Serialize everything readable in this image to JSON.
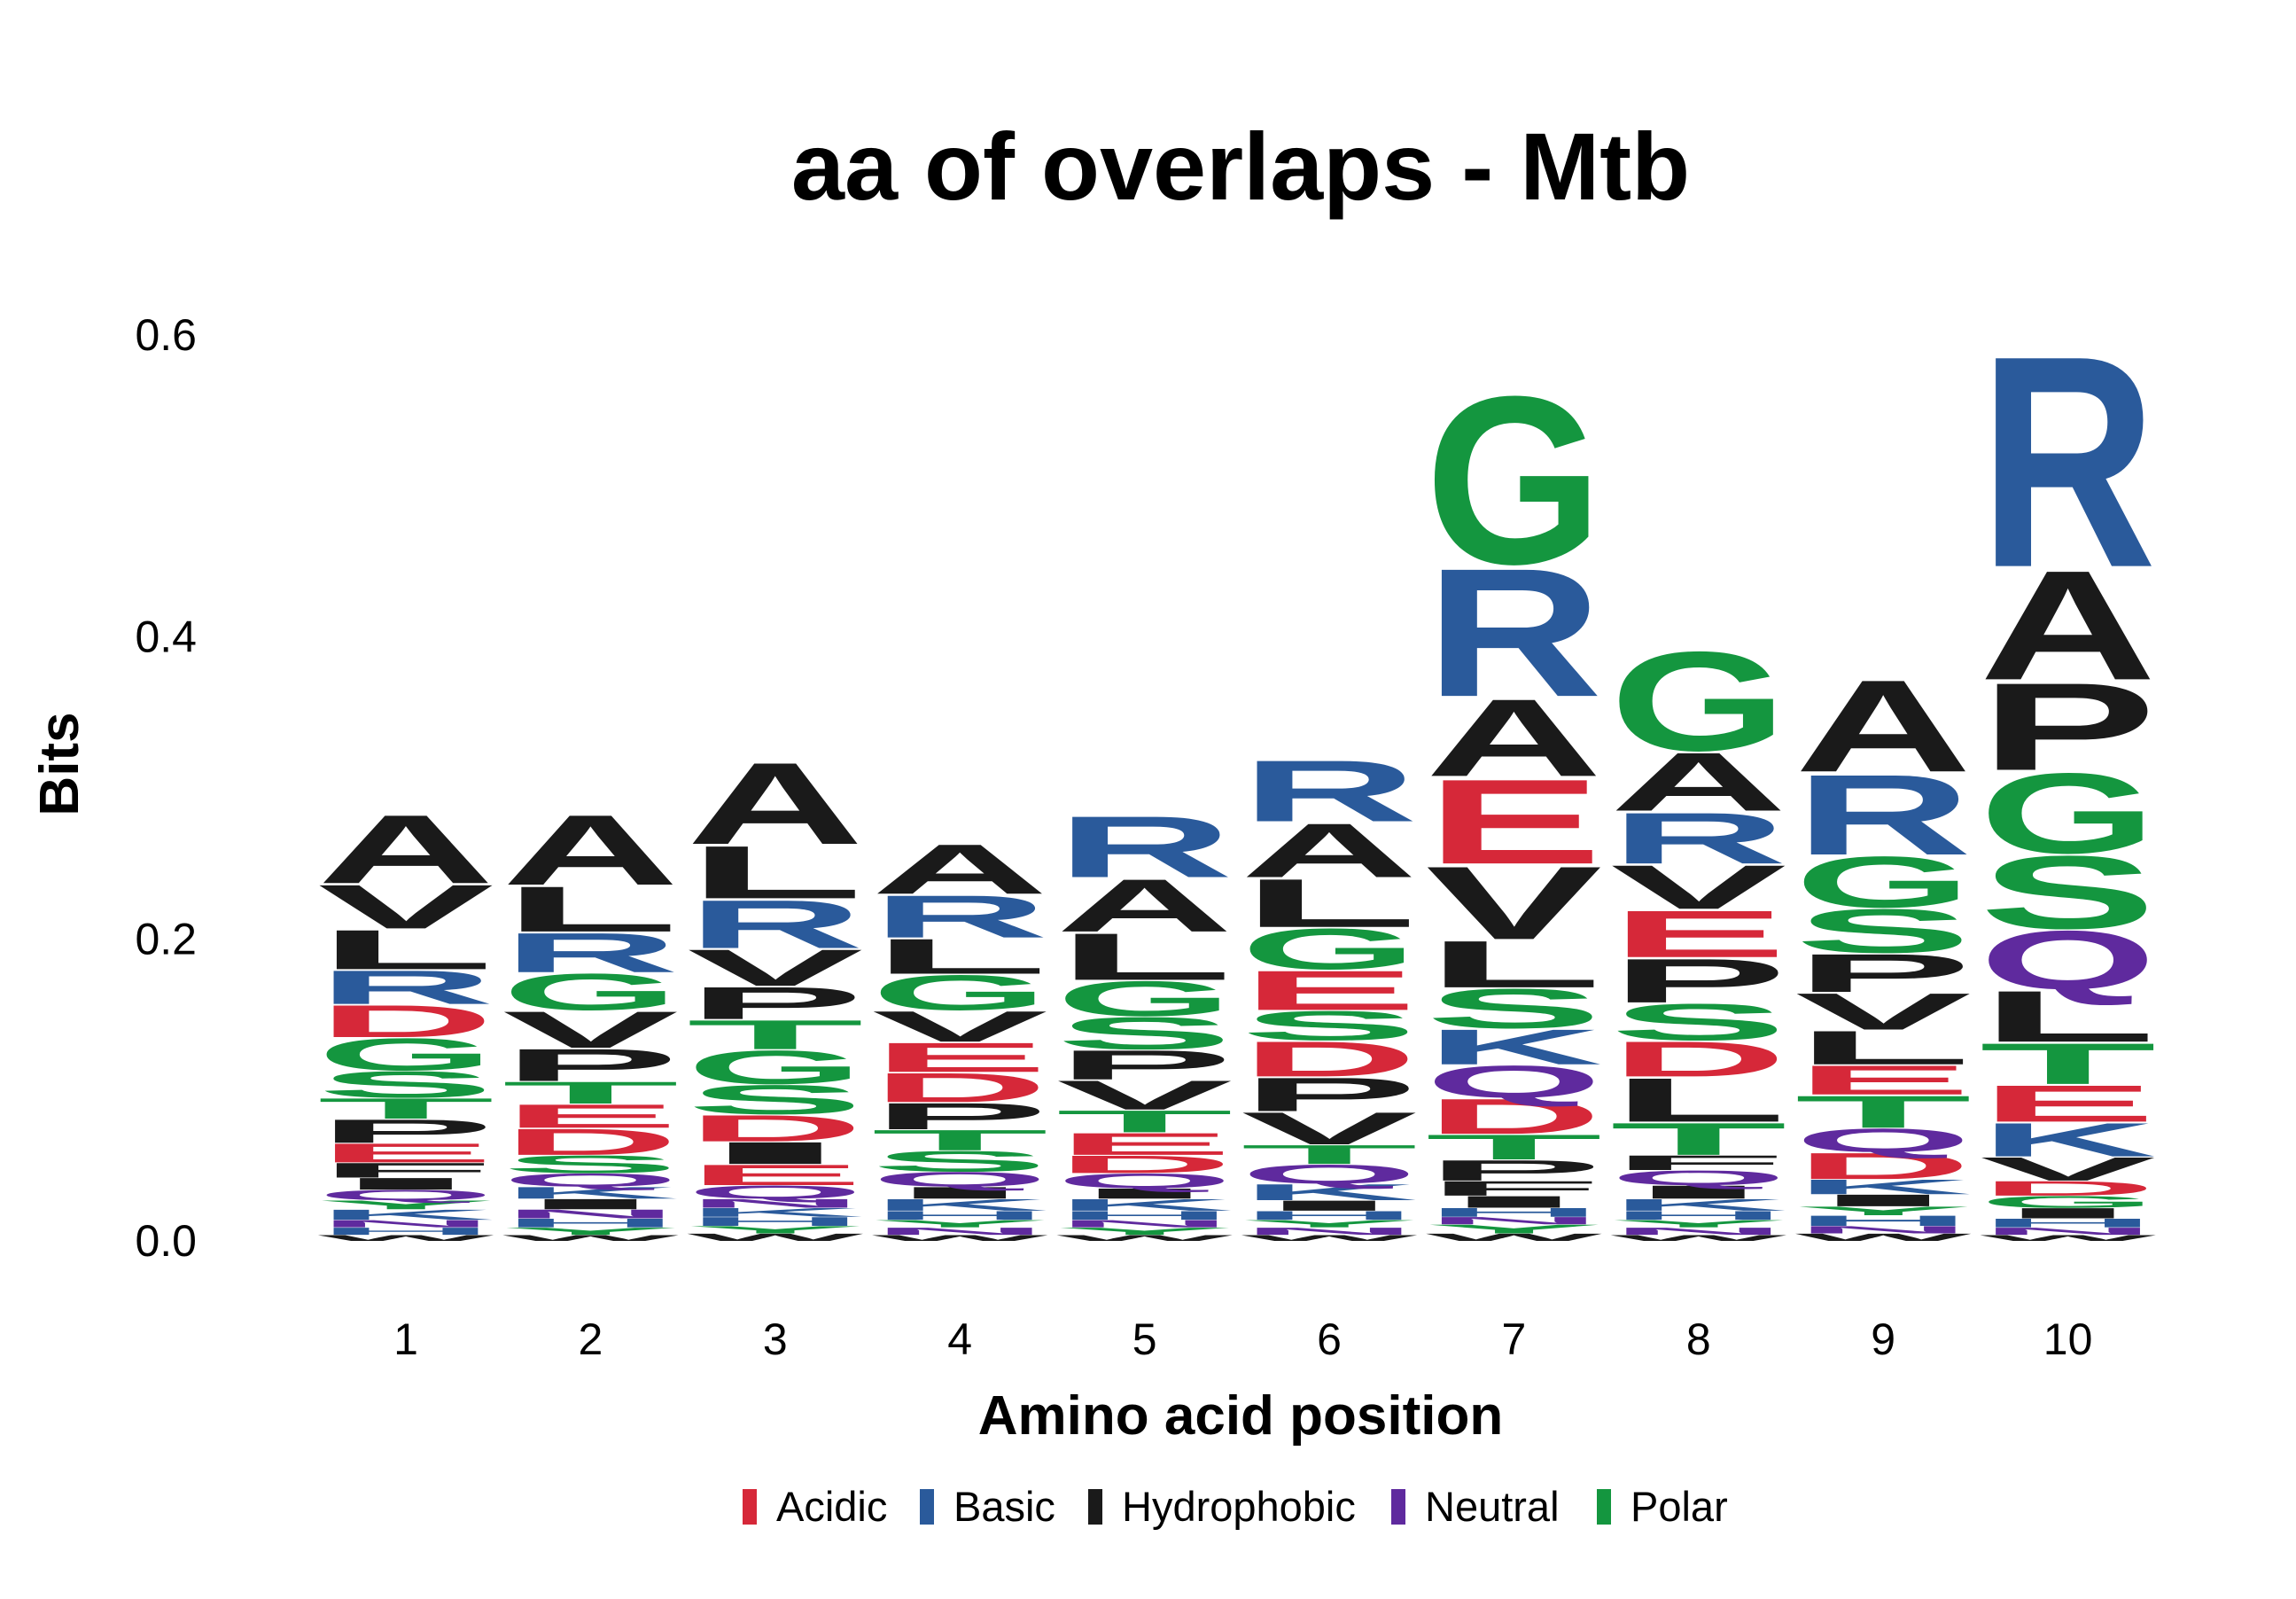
{
  "chart_data": {
    "type": "sequence-logo",
    "title": "aa of overlaps - Mtb",
    "xlabel": "Amino acid position",
    "ylabel": "Bits",
    "ylim": [
      0,
      0.6
    ],
    "yticks": [
      "0.0",
      "0.2",
      "0.4",
      "0.6"
    ],
    "positions": [
      "1",
      "2",
      "3",
      "4",
      "5",
      "6",
      "7",
      "8",
      "9",
      "10"
    ],
    "legend": [
      {
        "key": "acidic",
        "label": "Acidic",
        "color": "#d62839"
      },
      {
        "key": "basic",
        "label": "Basic",
        "color": "#2a5a9b"
      },
      {
        "key": "hydrophobic",
        "label": "Hydrophobic",
        "color": "#1a1a1a"
      },
      {
        "key": "neutral",
        "label": "Neutral",
        "color": "#5f2a9e"
      },
      {
        "key": "polar",
        "label": "Polar",
        "color": "#14963f"
      }
    ],
    "letter_class": {
      "D": "acidic",
      "E": "acidic",
      "R": "basic",
      "K": "basic",
      "H": "basic",
      "A": "hydrophobic",
      "V": "hydrophobic",
      "L": "hydrophobic",
      "I": "hydrophobic",
      "P": "hydrophobic",
      "F": "hydrophobic",
      "W": "hydrophobic",
      "M": "hydrophobic",
      "Q": "neutral",
      "N": "neutral",
      "G": "polar",
      "S": "polar",
      "T": "polar",
      "Y": "polar",
      "C": "polar"
    },
    "stacks": [
      [
        [
          "W",
          0.004
        ],
        [
          "H",
          0.005
        ],
        [
          "N",
          0.005
        ],
        [
          "K",
          0.007
        ],
        [
          "Y",
          0.006
        ],
        [
          "Q",
          0.007
        ],
        [
          "I",
          0.008
        ],
        [
          "F",
          0.01
        ],
        [
          "E",
          0.013
        ],
        [
          "P",
          0.016
        ],
        [
          "T",
          0.014
        ],
        [
          "S",
          0.018
        ],
        [
          "G",
          0.022
        ],
        [
          "D",
          0.022
        ],
        [
          "R",
          0.023
        ],
        [
          "L",
          0.027
        ],
        [
          "V",
          0.03
        ],
        [
          "A",
          0.047
        ]
      ],
      [
        [
          "W",
          0.004
        ],
        [
          "Y",
          0.005
        ],
        [
          "H",
          0.006
        ],
        [
          "N",
          0.006
        ],
        [
          "I",
          0.007
        ],
        [
          "K",
          0.008
        ],
        [
          "Q",
          0.009
        ],
        [
          "S",
          0.012
        ],
        [
          "D",
          0.018
        ],
        [
          "E",
          0.016
        ],
        [
          "T",
          0.015
        ],
        [
          "P",
          0.022
        ],
        [
          "V",
          0.025
        ],
        [
          "G",
          0.025
        ],
        [
          "R",
          0.027
        ],
        [
          "L",
          0.031
        ],
        [
          "A",
          0.048
        ]
      ],
      [
        [
          "W",
          0.005
        ],
        [
          "Y",
          0.005
        ],
        [
          "H",
          0.006
        ],
        [
          "K",
          0.006
        ],
        [
          "N",
          0.006
        ],
        [
          "Q",
          0.009
        ],
        [
          "E",
          0.014
        ],
        [
          "I",
          0.015
        ],
        [
          "D",
          0.018
        ],
        [
          "S",
          0.02
        ],
        [
          "G",
          0.023
        ],
        [
          "T",
          0.02
        ],
        [
          "P",
          0.022
        ],
        [
          "V",
          0.025
        ],
        [
          "R",
          0.033
        ],
        [
          "L",
          0.036
        ],
        [
          "A",
          0.056
        ]
      ],
      [
        [
          "W",
          0.004
        ],
        [
          "N",
          0.005
        ],
        [
          "Y",
          0.005
        ],
        [
          "H",
          0.006
        ],
        [
          "K",
          0.008
        ],
        [
          "I",
          0.008
        ],
        [
          "Q",
          0.01
        ],
        [
          "S",
          0.014
        ],
        [
          "T",
          0.014
        ],
        [
          "P",
          0.018
        ],
        [
          "D",
          0.02
        ],
        [
          "E",
          0.02
        ],
        [
          "V",
          0.021
        ],
        [
          "G",
          0.024
        ],
        [
          "L",
          0.024
        ],
        [
          "R",
          0.029
        ],
        [
          "A",
          0.034
        ]
      ],
      [
        [
          "W",
          0.004
        ],
        [
          "Y",
          0.005
        ],
        [
          "N",
          0.005
        ],
        [
          "H",
          0.006
        ],
        [
          "K",
          0.008
        ],
        [
          "I",
          0.007
        ],
        [
          "Q",
          0.01
        ],
        [
          "D",
          0.012
        ],
        [
          "E",
          0.015
        ],
        [
          "T",
          0.015
        ],
        [
          "V",
          0.02
        ],
        [
          "P",
          0.02
        ],
        [
          "S",
          0.022
        ],
        [
          "G",
          0.024
        ],
        [
          "L",
          0.032
        ],
        [
          "A",
          0.036
        ],
        [
          "R",
          0.042
        ]
      ],
      [
        [
          "W",
          0.004
        ],
        [
          "N",
          0.005
        ],
        [
          "Y",
          0.005
        ],
        [
          "H",
          0.006
        ],
        [
          "I",
          0.007
        ],
        [
          "K",
          0.011
        ],
        [
          "Q",
          0.013
        ],
        [
          "T",
          0.013
        ],
        [
          "V",
          0.022
        ],
        [
          "P",
          0.023
        ],
        [
          "D",
          0.024
        ],
        [
          "S",
          0.02
        ],
        [
          "E",
          0.027
        ],
        [
          "G",
          0.028
        ],
        [
          "L",
          0.033
        ],
        [
          "A",
          0.037
        ],
        [
          "R",
          0.042
        ]
      ],
      [
        [
          "W",
          0.005
        ],
        [
          "Y",
          0.006
        ],
        [
          "N",
          0.005
        ],
        [
          "H",
          0.006
        ],
        [
          "I",
          0.008
        ],
        [
          "F",
          0.01
        ],
        [
          "P",
          0.014
        ],
        [
          "T",
          0.017
        ],
        [
          "D",
          0.024
        ],
        [
          "Q",
          0.022
        ],
        [
          "K",
          0.024
        ],
        [
          "S",
          0.027
        ],
        [
          "L",
          0.032
        ],
        [
          "V",
          0.05
        ],
        [
          "E",
          0.058
        ],
        [
          "A",
          0.053
        ],
        [
          "R",
          0.088
        ],
        [
          "G",
          0.115
        ]
      ],
      [
        [
          "W",
          0.004
        ],
        [
          "N",
          0.005
        ],
        [
          "Y",
          0.005
        ],
        [
          "H",
          0.006
        ],
        [
          "K",
          0.008
        ],
        [
          "I",
          0.009
        ],
        [
          "Q",
          0.01
        ],
        [
          "F",
          0.01
        ],
        [
          "T",
          0.022
        ],
        [
          "L",
          0.03
        ],
        [
          "D",
          0.024
        ],
        [
          "S",
          0.025
        ],
        [
          "P",
          0.03
        ],
        [
          "E",
          0.032
        ],
        [
          "V",
          0.03
        ],
        [
          "R",
          0.035
        ],
        [
          "A",
          0.04
        ],
        [
          "G",
          0.068
        ]
      ],
      [
        [
          "W",
          0.005
        ],
        [
          "N",
          0.005
        ],
        [
          "H",
          0.007
        ],
        [
          "Y",
          0.006
        ],
        [
          "I",
          0.008
        ],
        [
          "K",
          0.01
        ],
        [
          "D",
          0.018
        ],
        [
          "Q",
          0.016
        ],
        [
          "T",
          0.022
        ],
        [
          "E",
          0.02
        ],
        [
          "L",
          0.023
        ],
        [
          "V",
          0.025
        ],
        [
          "P",
          0.026
        ],
        [
          "S",
          0.03
        ],
        [
          "G",
          0.035
        ],
        [
          "R",
          0.055
        ],
        [
          "A",
          0.063
        ]
      ],
      [
        [
          "W",
          0.004
        ],
        [
          "N",
          0.005
        ],
        [
          "H",
          0.006
        ],
        [
          "I",
          0.007
        ],
        [
          "G",
          0.008
        ],
        [
          "D",
          0.01
        ],
        [
          "V",
          0.016
        ],
        [
          "K",
          0.023
        ],
        [
          "E",
          0.025
        ],
        [
          "T",
          0.028
        ],
        [
          "L",
          0.035
        ],
        [
          "Q",
          0.04
        ],
        [
          "S",
          0.05
        ],
        [
          "G",
          0.055
        ],
        [
          "P",
          0.06
        ],
        [
          "A",
          0.075
        ],
        [
          "R",
          0.145
        ]
      ]
    ]
  }
}
